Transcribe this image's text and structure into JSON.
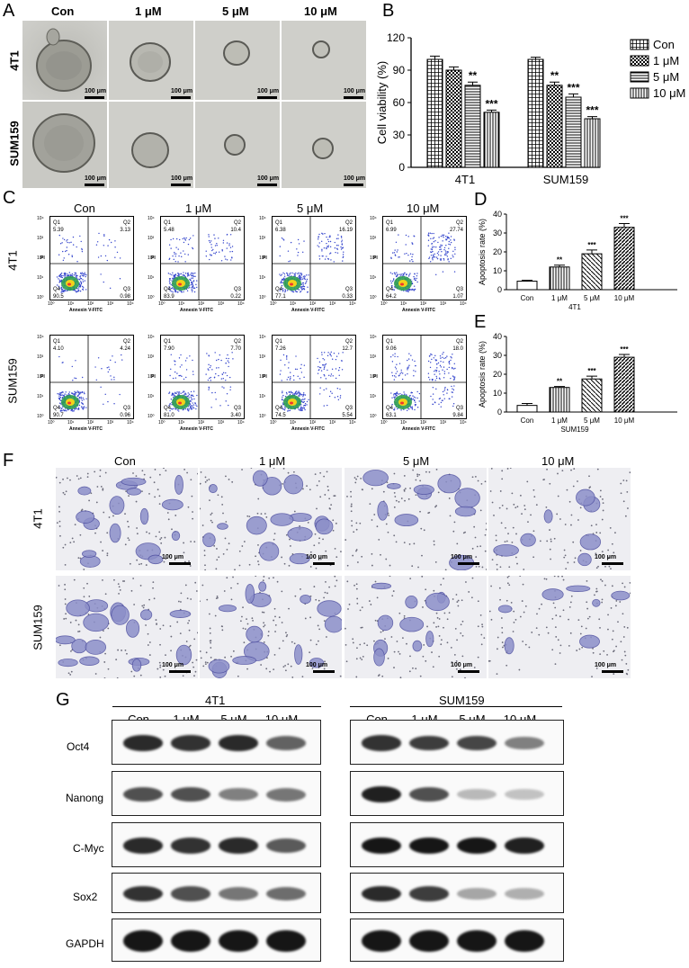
{
  "panel_letters": {
    "A": "A",
    "B": "B",
    "C": "C",
    "D": "D",
    "E": "E",
    "F": "F",
    "G": "G"
  },
  "panelA": {
    "cols": [
      "Con",
      "1 μM",
      "5 μM",
      "10 μM"
    ],
    "rows": [
      "4T1",
      "SUM159"
    ],
    "scale": "100 μm"
  },
  "chart_B": {
    "type": "bar",
    "ylabel": "Cell viability (%)",
    "ylim": [
      0,
      120
    ],
    "yticks": [
      "0",
      "30",
      "60",
      "90",
      "120"
    ],
    "categories": [
      "4T1",
      "SUM159"
    ],
    "series": [
      {
        "name": "Con",
        "values": [
          100,
          100
        ],
        "err": [
          3,
          2
        ],
        "sig": [
          "",
          ""
        ]
      },
      {
        "name": "1 μM",
        "values": [
          90,
          76
        ],
        "err": [
          3,
          3
        ],
        "sig": [
          "",
          "**"
        ]
      },
      {
        "name": "5 μM",
        "values": [
          76,
          65
        ],
        "err": [
          3,
          3
        ],
        "sig": [
          "**",
          "***"
        ]
      },
      {
        "name": "10 μM",
        "values": [
          51,
          45
        ],
        "err": [
          2,
          2
        ],
        "sig": [
          "***",
          "***"
        ]
      }
    ]
  },
  "panelC": {
    "cols": [
      "Con",
      "1 μM",
      "5 μM",
      "10 μM"
    ],
    "rows": [
      "4T1",
      "SUM159"
    ],
    "xlabel": "Annexin V-FITC",
    "ylabel": "PI",
    "quad": [
      [
        [
          "Q1",
          "5.39"
        ],
        [
          "Q2",
          "3.13"
        ],
        [
          "Q4",
          "90.5"
        ],
        [
          "Q3",
          "0.98"
        ]
      ],
      [
        [
          "Q1",
          "5.48"
        ],
        [
          "Q2",
          "10.4"
        ],
        [
          "Q4",
          "83.9"
        ],
        [
          "Q3",
          "0.22"
        ]
      ],
      [
        [
          "Q1",
          "6.38"
        ],
        [
          "Q2",
          "16.19"
        ],
        [
          "Q4",
          "77.1"
        ],
        [
          "Q3",
          "0.33"
        ]
      ],
      [
        [
          "Q1",
          "6.99"
        ],
        [
          "Q2",
          "27.74"
        ],
        [
          "Q4",
          "64.2"
        ],
        [
          "Q3",
          "1.07"
        ]
      ],
      [
        [
          "Q1",
          "4.10"
        ],
        [
          "Q2",
          "4.24"
        ],
        [
          "Q4",
          "90.7"
        ],
        [
          "Q3",
          "0.96"
        ]
      ],
      [
        [
          "Q1",
          "7.90"
        ],
        [
          "Q2",
          "7.70"
        ],
        [
          "Q4",
          "81.0"
        ],
        [
          "Q3",
          "3.40"
        ]
      ],
      [
        [
          "Q1",
          "7.26"
        ],
        [
          "Q2",
          "12.7"
        ],
        [
          "Q4",
          "74.5"
        ],
        [
          "Q3",
          "5.54"
        ]
      ],
      [
        [
          "Q1",
          "9.06"
        ],
        [
          "Q2",
          "18.0"
        ],
        [
          "Q4",
          "63.1"
        ],
        [
          "Q3",
          "9.84"
        ]
      ]
    ],
    "ticks": [
      "10⁰",
      "10¹",
      "10²",
      "10³",
      "10⁴"
    ]
  },
  "chart_D": {
    "type": "bar",
    "xlabel": "4T1",
    "ylabel": "Apoptosis rate (%)",
    "ylim": [
      0,
      40
    ],
    "yticks": [
      "0",
      "10",
      "20",
      "30",
      "40"
    ],
    "categories": [
      "Con",
      "1 μM",
      "5 μM",
      "10 μM"
    ],
    "values": [
      4.5,
      12,
      19,
      33
    ],
    "err": [
      0.5,
      1,
      2,
      2
    ],
    "sig": [
      "",
      "**",
      "***",
      "***"
    ]
  },
  "chart_E": {
    "type": "bar",
    "xlabel": "SUM159",
    "ylabel": "Apoptosis rate (%)",
    "ylim": [
      0,
      40
    ],
    "yticks": [
      "0",
      "10",
      "20",
      "30",
      "40"
    ],
    "categories": [
      "Con",
      "1 μM",
      "5 μM",
      "10 μM"
    ],
    "values": [
      3.5,
      13,
      17.5,
      29
    ],
    "err": [
      1,
      0.5,
      1.5,
      1.5
    ],
    "sig": [
      "",
      "**",
      "***",
      "***"
    ]
  },
  "panelF": {
    "cols": [
      "Con",
      "1 μM",
      "5 μM",
      "10 μM"
    ],
    "rows": [
      "4T1",
      "SUM159"
    ],
    "scale": "100 μm"
  },
  "panelG": {
    "groups": [
      "4T1",
      "SUM159"
    ],
    "lanes": [
      "Con",
      "1 μM",
      "5 μM",
      "10 μM"
    ],
    "proteins": [
      "Oct4",
      "Nanong",
      "C-Myc",
      "Sox2",
      "GAPDH"
    ]
  }
}
